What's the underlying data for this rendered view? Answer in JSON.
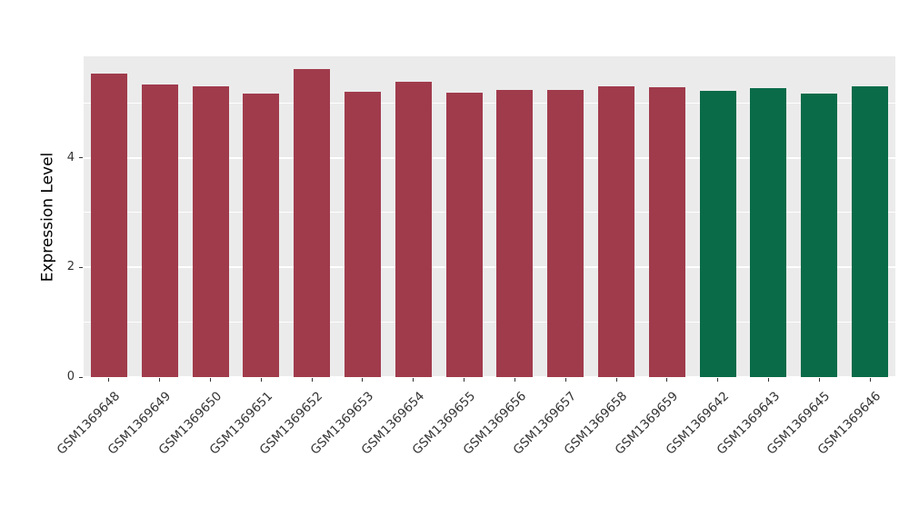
{
  "chart_data": {
    "type": "bar",
    "title": "",
    "xlabel": "",
    "ylabel": "Expression Level",
    "ylim": [
      0,
      5.85
    ],
    "yticks": [
      0,
      2,
      4
    ],
    "minor_ticks": [
      1,
      3,
      5
    ],
    "grid": true,
    "legend_position": "none",
    "panel_bg": "#EBEBEB",
    "grid_color": "#FFFFFF",
    "categories": [
      "GSM1369648",
      "GSM1369649",
      "GSM1369650",
      "GSM1369651",
      "GSM1369652",
      "GSM1369653",
      "GSM1369654",
      "GSM1369655",
      "GSM1369656",
      "GSM1369657",
      "GSM1369658",
      "GSM1369659",
      "GSM1369642",
      "GSM1369643",
      "GSM1369645",
      "GSM1369646"
    ],
    "values": [
      5.54,
      5.34,
      5.3,
      5.17,
      5.62,
      5.21,
      5.38,
      5.19,
      5.23,
      5.23,
      5.31,
      5.28,
      5.22,
      5.27,
      5.17,
      5.31
    ],
    "bar_groups": [
      "maroon",
      "maroon",
      "maroon",
      "maroon",
      "maroon",
      "maroon",
      "maroon",
      "maroon",
      "maroon",
      "maroon",
      "maroon",
      "maroon",
      "green",
      "green",
      "green",
      "green"
    ],
    "colors": {
      "maroon": "#A03B4C",
      "green": "#0A6B49"
    }
  }
}
